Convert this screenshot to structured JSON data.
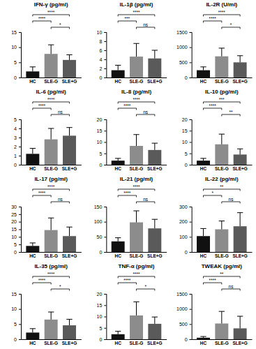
{
  "chart_data": [
    {
      "type": "bar",
      "title": "IFN-γ (pg/ml)",
      "categories": [
        "HC",
        "SLE-G",
        "SLE+G"
      ],
      "values": [
        2.0,
        7.8,
        5.8
      ],
      "errors": [
        1.5,
        3.0,
        1.7
      ],
      "colors": [
        "#111111",
        "#8c8c8c",
        "#5a5a5a"
      ],
      "ylim": [
        0,
        15
      ],
      "yticks": [
        0,
        5,
        10,
        15
      ],
      "comparisons": [
        {
          "from": "HC",
          "to": "SLE+G",
          "label": "****"
        },
        {
          "from": "HC",
          "to": "SLE-G",
          "label": "****"
        },
        {
          "from": "SLE-G",
          "to": "SLE+G",
          "label": "*"
        }
      ]
    },
    {
      "type": "bar",
      "title": "IL-1β (pg/ml)",
      "categories": [
        "HC",
        "SLE-G",
        "SLE+G"
      ],
      "values": [
        1.6,
        4.6,
        4.2
      ],
      "errors": [
        1.1,
        2.9,
        1.8
      ],
      "colors": [
        "#111111",
        "#8c8c8c",
        "#5a5a5a"
      ],
      "ylim": [
        0,
        10
      ],
      "yticks": [
        0,
        2,
        4,
        6,
        8,
        10
      ],
      "comparisons": [
        {
          "from": "HC",
          "to": "SLE+G",
          "label": "****"
        },
        {
          "from": "HC",
          "to": "SLE-G",
          "label": "***"
        },
        {
          "from": "SLE-G",
          "to": "SLE+G",
          "label": "ns"
        }
      ]
    },
    {
      "type": "bar",
      "title": "IL-2R (U/ml)",
      "categories": [
        "HC",
        "SLE-G",
        "SLE+G"
      ],
      "values": [
        240,
        700,
        500
      ],
      "errors": [
        110,
        270,
        220
      ],
      "colors": [
        "#111111",
        "#8c8c8c",
        "#5a5a5a"
      ],
      "ylim": [
        0,
        1500
      ],
      "yticks": [
        0,
        500,
        1000,
        1500
      ],
      "comparisons": [
        {
          "from": "HC",
          "to": "SLE+G",
          "label": "****"
        },
        {
          "from": "HC",
          "to": "SLE-G",
          "label": "****"
        },
        {
          "from": "SLE-G",
          "to": "SLE+G",
          "label": "*"
        }
      ]
    },
    {
      "type": "bar",
      "title": "IL-6 (pg/ml)",
      "categories": [
        "HC",
        "SLE-G",
        "SLE+G"
      ],
      "values": [
        1.2,
        2.8,
        3.2
      ],
      "errors": [
        0.6,
        1.2,
        0.9
      ],
      "colors": [
        "#111111",
        "#8c8c8c",
        "#5a5a5a"
      ],
      "ylim": [
        0,
        5
      ],
      "yticks": [
        0,
        1,
        2,
        3,
        4,
        5
      ],
      "comparisons": [
        {
          "from": "HC",
          "to": "SLE+G",
          "label": "****"
        },
        {
          "from": "HC",
          "to": "SLE-G",
          "label": "****"
        },
        {
          "from": "SLE-G",
          "to": "SLE+G",
          "label": "ns"
        }
      ]
    },
    {
      "type": "bar",
      "title": "IL-8 (pg/ml)",
      "categories": [
        "HC",
        "SLE-G",
        "SLE+G"
      ],
      "values": [
        1.8,
        8.3,
        6.5
      ],
      "errors": [
        1.0,
        5.0,
        3.0
      ],
      "colors": [
        "#111111",
        "#8c8c8c",
        "#5a5a5a"
      ],
      "ylim": [
        0,
        20
      ],
      "yticks": [
        0,
        5,
        10,
        15,
        20
      ],
      "comparisons": [
        {
          "from": "HC",
          "to": "SLE+G",
          "label": "****"
        },
        {
          "from": "HC",
          "to": "SLE-G",
          "label": "****"
        },
        {
          "from": "SLE-G",
          "to": "SLE+G",
          "label": "ns"
        }
      ]
    },
    {
      "type": "bar",
      "title": "IL-10 (pg/ml)",
      "categories": [
        "HC",
        "SLE-G",
        "SLE+G"
      ],
      "values": [
        1.8,
        9.0,
        4.5
      ],
      "errors": [
        1.0,
        4.5,
        2.5
      ],
      "colors": [
        "#111111",
        "#8c8c8c",
        "#5a5a5a"
      ],
      "ylim": [
        0,
        20
      ],
      "yticks": [
        0,
        5,
        10,
        15,
        20
      ],
      "comparisons": [
        {
          "from": "HC",
          "to": "SLE+G",
          "label": "***"
        },
        {
          "from": "HC",
          "to": "SLE-G",
          "label": "****"
        },
        {
          "from": "SLE-G",
          "to": "SLE+G",
          "label": "**"
        }
      ]
    },
    {
      "type": "bar",
      "title": "IL-17 (pg/ml)",
      "categories": [
        "HC",
        "SLE-G",
        "SLE+G"
      ],
      "values": [
        4.0,
        14.5,
        10.5
      ],
      "errors": [
        2.0,
        8.0,
        6.0
      ],
      "colors": [
        "#111111",
        "#8c8c8c",
        "#5a5a5a"
      ],
      "ylim": [
        0,
        30
      ],
      "yticks": [
        0,
        5,
        10,
        15,
        20,
        25,
        30
      ],
      "comparisons": [
        {
          "from": "HC",
          "to": "SLE+G",
          "label": "****"
        },
        {
          "from": "HC",
          "to": "SLE-G",
          "label": "****"
        },
        {
          "from": "SLE-G",
          "to": "SLE+G",
          "label": "ns"
        }
      ]
    },
    {
      "type": "bar",
      "title": "IL-21 (pg/ml)",
      "categories": [
        "HC",
        "SLE-G",
        "SLE+G"
      ],
      "values": [
        35,
        98,
        78
      ],
      "errors": [
        12,
        38,
        30
      ],
      "colors": [
        "#111111",
        "#8c8c8c",
        "#5a5a5a"
      ],
      "ylim": [
        0,
        150
      ],
      "yticks": [
        0,
        50,
        100,
        150
      ],
      "comparisons": [
        {
          "from": "HC",
          "to": "SLE+G",
          "label": "****"
        },
        {
          "from": "HC",
          "to": "SLE-G",
          "label": "****"
        },
        {
          "from": "SLE-G",
          "to": "SLE+G",
          "label": "ns"
        }
      ]
    },
    {
      "type": "bar",
      "title": "IL-22 (pg/ml)",
      "categories": [
        "HC",
        "SLE-G",
        "SLE+G"
      ],
      "values": [
        105,
        150,
        170
      ],
      "errors": [
        50,
        55,
        90
      ],
      "colors": [
        "#111111",
        "#8c8c8c",
        "#5a5a5a"
      ],
      "ylim": [
        0,
        300
      ],
      "yticks": [
        0,
        100,
        200,
        300
      ],
      "comparisons": [
        {
          "from": "HC",
          "to": "SLE+G",
          "label": "**"
        },
        {
          "from": "HC",
          "to": "SLE-G",
          "label": "*"
        },
        {
          "from": "SLE-G",
          "to": "SLE+G",
          "label": "ns"
        }
      ]
    },
    {
      "type": "bar",
      "title": "IL-35 (pg/ml)",
      "categories": [
        "HC",
        "SLE-G",
        "SLE+G"
      ],
      "values": [
        2.2,
        6.5,
        4.6
      ],
      "errors": [
        1.3,
        2.5,
        2.0
      ],
      "colors": [
        "#111111",
        "#8c8c8c",
        "#5a5a5a"
      ],
      "ylim": [
        0,
        15
      ],
      "yticks": [
        0,
        5,
        10,
        15
      ],
      "comparisons": [
        {
          "from": "HC",
          "to": "SLE+G",
          "label": "****"
        },
        {
          "from": "HC",
          "to": "SLE-G",
          "label": "****"
        },
        {
          "from": "SLE-G",
          "to": "SLE+G",
          "label": "*"
        }
      ]
    },
    {
      "type": "bar",
      "title": "TNF-α (pg/ml)",
      "categories": [
        "HC",
        "SLE-G",
        "SLE+G"
      ],
      "values": [
        2.2,
        10.5,
        6.8
      ],
      "errors": [
        1.3,
        6.0,
        3.0
      ],
      "colors": [
        "#111111",
        "#8c8c8c",
        "#5a5a5a"
      ],
      "ylim": [
        0,
        20
      ],
      "yticks": [
        0,
        5,
        10,
        15,
        20
      ],
      "comparisons": [
        {
          "from": "HC",
          "to": "SLE+G",
          "label": "****"
        },
        {
          "from": "HC",
          "to": "SLE-G",
          "label": "****"
        },
        {
          "from": "SLE-G",
          "to": "SLE+G",
          "label": "*"
        }
      ]
    },
    {
      "type": "bar",
      "title": "TWEAK (pg/ml)",
      "categories": [
        "HC",
        "SLE-G",
        "SLE+G"
      ],
      "values": [
        50,
        520,
        360
      ],
      "errors": [
        40,
        400,
        400
      ],
      "colors": [
        "#111111",
        "#8c8c8c",
        "#5a5a5a"
      ],
      "ylim": [
        0,
        1500
      ],
      "yticks": [
        0,
        500,
        1000,
        1500
      ],
      "comparisons": [
        {
          "from": "HC",
          "to": "SLE+G",
          "label": "**"
        },
        {
          "from": "HC",
          "to": "SLE-G",
          "label": "****"
        },
        {
          "from": "SLE-G",
          "to": "SLE+G",
          "label": "ns"
        }
      ]
    }
  ]
}
